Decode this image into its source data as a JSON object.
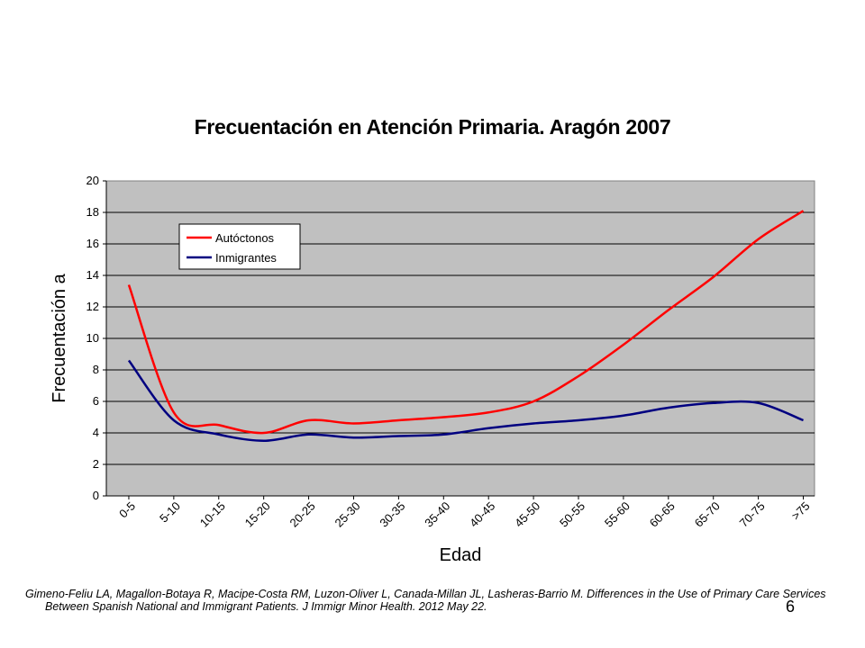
{
  "slide_number": "6",
  "citation": {
    "line1": "Gimeno-Feliu LA, Magallon-Botaya R, Macipe-Costa RM, Luzon-Oliver L, Canada-Millan JL, Lasheras-Barrio M. Differences in the Use of Primary Care Services",
    "line2": "Between Spanish National and Immigrant Patients. J Immigr Minor Health. 2012 May 22."
  },
  "colors": {
    "plot_background": "#c0c0c0",
    "autoctonos": "#ff0000",
    "inmigrantes": "#000080"
  },
  "chart_data": {
    "type": "line",
    "title": "Frecuentación en Atención Primaria. Aragón 2007",
    "xlabel": "Edad",
    "ylabel": "Frecuentación a",
    "ylim": [
      0,
      20
    ],
    "yticks": [
      0,
      2,
      4,
      6,
      8,
      10,
      12,
      14,
      16,
      18,
      20
    ],
    "grid": true,
    "legend_position": "top-left",
    "categories": [
      "0-5",
      "5-10",
      "10-15",
      "15-20",
      "20-25",
      "25-30",
      "30-35",
      "35-40",
      "40-45",
      "45-50",
      "50-55",
      "55-60",
      "60-65",
      "65-70",
      "70-75",
      ">75"
    ],
    "series": [
      {
        "name": "Autóctonos",
        "color": "#ff0000",
        "values": [
          13.4,
          5.3,
          4.5,
          4.0,
          4.8,
          4.6,
          4.8,
          5.0,
          5.3,
          6.0,
          7.6,
          9.6,
          11.8,
          13.9,
          16.3,
          18.1
        ]
      },
      {
        "name": "Inmigrantes",
        "color": "#000080",
        "values": [
          8.6,
          4.8,
          3.9,
          3.5,
          3.9,
          3.7,
          3.8,
          3.9,
          4.3,
          4.6,
          4.8,
          5.1,
          5.6,
          5.9,
          5.9,
          4.8
        ]
      }
    ]
  }
}
